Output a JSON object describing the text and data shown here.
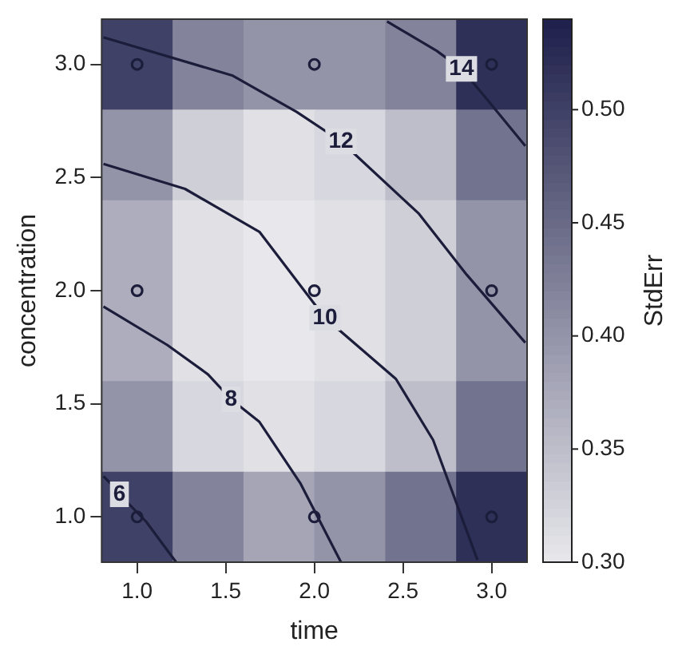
{
  "chart_data": {
    "type": "heatmap",
    "xlabel": "time",
    "ylabel": "concentration",
    "clabel": "StdErr",
    "xlim": [
      0.8,
      3.2
    ],
    "ylim": [
      0.8,
      3.2
    ],
    "xticks": [
      {
        "value": 1,
        "label": "1.0"
      },
      {
        "value": 1.5,
        "label": "1.5"
      },
      {
        "value": 2,
        "label": "2.0"
      },
      {
        "value": 2.5,
        "label": "2.5"
      },
      {
        "value": 3,
        "label": "3.0"
      }
    ],
    "yticks": [
      {
        "value": 1,
        "label": "1.0"
      },
      {
        "value": 1.5,
        "label": "1.5"
      },
      {
        "value": 2,
        "label": "2.0"
      },
      {
        "value": 2.5,
        "label": "2.5"
      },
      {
        "value": 3,
        "label": "3.0"
      }
    ],
    "cells": [
      [
        0.5,
        0.42,
        0.4,
        0.4,
        0.42,
        0.52
      ],
      [
        0.4,
        0.33,
        0.31,
        0.32,
        0.35,
        0.44
      ],
      [
        0.37,
        0.31,
        0.3,
        0.31,
        0.33,
        0.4
      ],
      [
        0.37,
        0.31,
        0.3,
        0.31,
        0.33,
        0.4
      ],
      [
        0.4,
        0.32,
        0.31,
        0.32,
        0.35,
        0.44
      ],
      [
        0.5,
        0.42,
        0.38,
        0.4,
        0.44,
        0.52
      ]
    ],
    "clim": [
      0.3,
      0.54
    ],
    "cticks": [
      {
        "value": 0.3,
        "label": "0.30"
      },
      {
        "value": 0.35,
        "label": "0.35"
      },
      {
        "value": 0.4,
        "label": "0.40"
      },
      {
        "value": 0.45,
        "label": "0.45"
      },
      {
        "value": 0.5,
        "label": "0.50"
      }
    ],
    "series": [
      {
        "type": "line",
        "name": "6",
        "color": "#1c1d3a",
        "marker": "none",
        "x": [
          0.81,
          0.86,
          0.9,
          1.05,
          1.22
        ],
        "values": [
          1.18,
          1.14,
          1.1,
          0.98,
          0.8
        ]
      },
      {
        "type": "line",
        "name": "8",
        "color": "#1c1d3a",
        "marker": "none",
        "x": [
          0.81,
          1.17,
          1.4,
          1.53,
          1.69,
          1.92,
          2.15
        ],
        "values": [
          1.93,
          1.76,
          1.63,
          1.52,
          1.42,
          1.15,
          0.8
        ]
      },
      {
        "type": "line",
        "name": "10",
        "color": "#1c1d3a",
        "marker": "none",
        "x": [
          0.81,
          1.27,
          1.69,
          2.06,
          2.46,
          2.67,
          2.92
        ],
        "values": [
          2.56,
          2.45,
          2.26,
          1.88,
          1.61,
          1.34,
          0.81
        ]
      },
      {
        "type": "line",
        "name": "12",
        "color": "#1c1d3a",
        "marker": "none",
        "x": [
          0.81,
          1.54,
          1.9,
          2.15,
          2.59,
          2.86,
          3.19
        ],
        "values": [
          3.12,
          2.95,
          2.79,
          2.66,
          2.34,
          2.07,
          1.77
        ]
      },
      {
        "type": "line",
        "name": "14",
        "color": "#1c1d3a",
        "marker": "none",
        "x": [
          2.41,
          2.69,
          2.83,
          2.97,
          3.19
        ],
        "values": [
          3.19,
          3.06,
          2.98,
          2.85,
          2.64
        ]
      },
      {
        "type": "scatter",
        "color": "#1c1d3a",
        "x": [
          1,
          2,
          3,
          1,
          2,
          3,
          1,
          2,
          3
        ],
        "values": [
          1,
          1,
          1,
          2,
          2,
          2,
          3,
          3,
          3
        ]
      }
    ],
    "marker": "circle",
    "legend": false
  }
}
